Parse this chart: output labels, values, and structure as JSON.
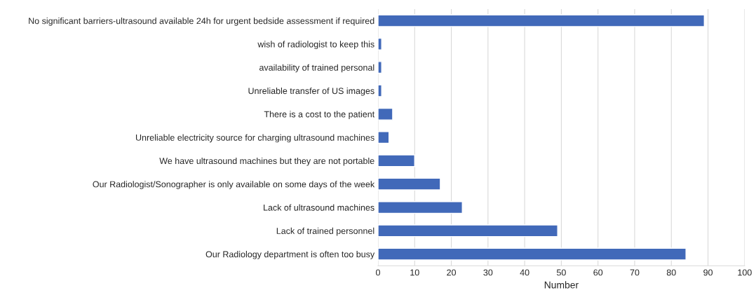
{
  "chart_data": {
    "type": "bar",
    "orientation": "horizontal",
    "xlabel": "Number",
    "categories": [
      "No significant barriers-ultrasound available 24h for urgent bedside assessment if required",
      "wish of radiologist to keep this",
      "availability of trained personal",
      "Unreliable transfer of US images",
      "There is a cost to the patient",
      "Unreliable electricity source for charging ultrasound machines",
      "We have ultrasound machines but they are not portable",
      "Our Radiologist/Sonographer is only available on some days of the week",
      "Lack of ultrasound machines",
      "Lack of trained personnel",
      "Our Radiology department is often too busy"
    ],
    "values": [
      89,
      1,
      1,
      1,
      4,
      3,
      10,
      17,
      23,
      49,
      84
    ],
    "color": "#4169b9",
    "xlim": [
      0,
      100
    ],
    "xticks": [
      0,
      10,
      20,
      30,
      40,
      50,
      60,
      70,
      80,
      90,
      100
    ],
    "grid": "x"
  }
}
